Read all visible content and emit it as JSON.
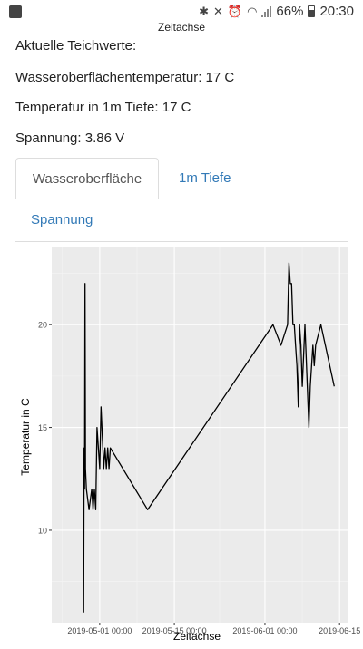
{
  "status_bar": {
    "battery": "66%",
    "time": "20:30",
    "icons": [
      "app-icon",
      "bluetooth-icon",
      "mute-icon",
      "alarm-icon",
      "wifi-icon",
      "signal-icon",
      "battery-icon"
    ]
  },
  "top_label": "Zeitachse",
  "readings": {
    "header": "Aktuelle Teichwerte:",
    "surface": "Wasseroberflächentemperatur: 17 C",
    "depth": "Temperatur in 1m Tiefe: 17 C",
    "voltage": "Spannung: 3.86 V"
  },
  "tabs": [
    {
      "label": "Wasseroberfläche",
      "active": true
    },
    {
      "label": "1m Tiefe",
      "active": false
    },
    {
      "label": "Spannung",
      "active": false
    }
  ],
  "colors": {
    "accent": "#337ab7",
    "panel": "#ebebeb",
    "line": "#000000"
  },
  "chart_data": {
    "type": "line",
    "xlabel": "Zeitachse",
    "ylabel": "Temperatur in C",
    "x_tick_labels": [
      "2019-05-01 00:00",
      "2019-05-15 00:00",
      "2019-06-01 00:00",
      "2019-06-15"
    ],
    "y_tick_labels": [
      "10",
      "15",
      "20"
    ],
    "ylim": [
      5.5,
      23.8
    ],
    "xlim": [
      "2019-04-22 00:00",
      "2019-06-16 12:00"
    ],
    "grid": true,
    "series": [
      {
        "x": [
          "2019-04-28 00:00",
          "2019-04-28 02:00",
          "2019-04-28 04:00",
          "2019-04-28 06:00",
          "2019-04-28 08:00",
          "2019-04-28 12:00",
          "2019-04-29 00:00",
          "2019-04-29 12:00",
          "2019-04-29 18:00",
          "2019-04-30 00:00",
          "2019-04-30 06:00",
          "2019-04-30 12:00",
          "2019-05-01 00:00",
          "2019-05-01 06:00",
          "2019-05-01 18:00",
          "2019-05-02 00:00",
          "2019-05-02 06:00",
          "2019-05-02 12:00",
          "2019-05-02 18:00",
          "2019-05-03 00:00",
          "2019-05-10 00:00",
          "2019-06-02 12:00",
          "2019-06-04 00:00",
          "2019-06-05 06:00",
          "2019-06-05 12:00",
          "2019-06-05 18:00",
          "2019-06-06 00:00",
          "2019-06-06 06:00",
          "2019-06-06 12:00",
          "2019-06-06 18:00",
          "2019-06-07 00:00",
          "2019-06-07 06:00",
          "2019-06-07 12:00",
          "2019-06-07 18:00",
          "2019-06-08 00:00",
          "2019-06-08 12:00",
          "2019-06-09 06:00",
          "2019-06-09 12:00",
          "2019-06-10 00:00",
          "2019-06-10 06:00",
          "2019-06-10 12:00",
          "2019-06-11 12:00",
          "2019-06-14 00:00"
        ],
        "y": [
          6,
          14,
          12,
          22,
          13,
          12,
          11,
          12,
          11,
          12,
          11,
          15,
          13,
          16,
          13,
          14,
          13,
          14,
          13,
          14,
          11,
          20,
          19,
          20,
          23,
          22,
          22,
          20,
          20,
          19,
          18,
          16,
          20,
          19,
          17,
          20,
          15,
          17,
          19,
          18,
          19,
          20,
          17
        ]
      }
    ]
  }
}
